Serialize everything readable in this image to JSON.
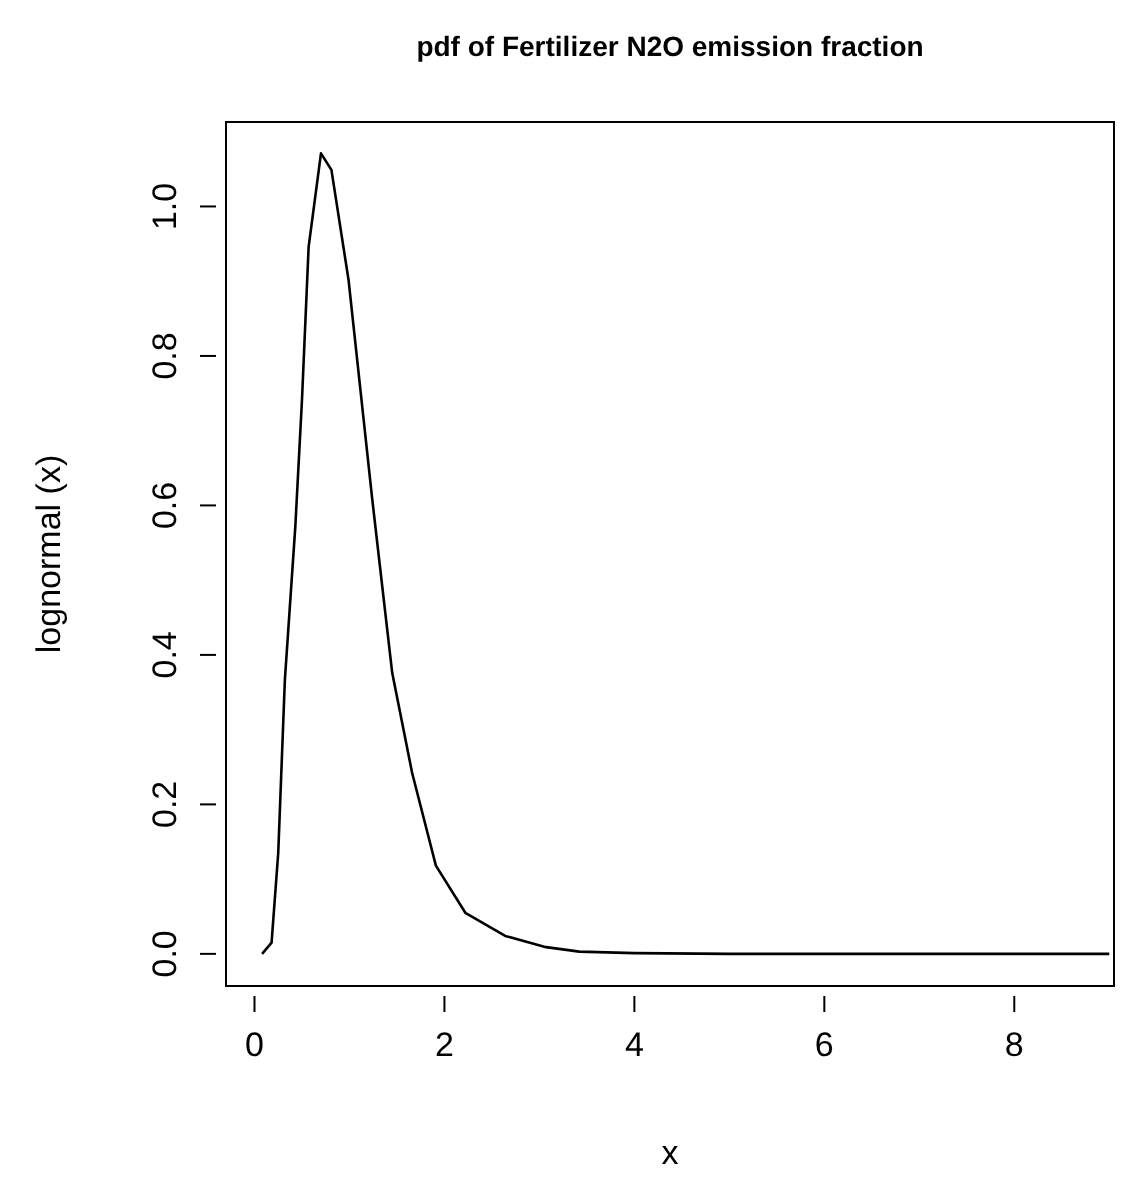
{
  "chart_data": {
    "type": "line",
    "title": "pdf of Fertilizer N2O emission fraction",
    "xlabel": "x",
    "ylabel": "lognormal (x)",
    "x": [
      0.08,
      0.18,
      0.25,
      0.32,
      0.43,
      0.5,
      0.57,
      0.7,
      0.81,
      0.99,
      1.24,
      1.45,
      1.66,
      1.91,
      2.22,
      2.64,
      3.07,
      3.42,
      4,
      5,
      6,
      7,
      8,
      9
    ],
    "series": [
      {
        "color": "#000000",
        "values": [
          0,
          0.015,
          0.135,
          0.367,
          0.572,
          0.741,
          0.946,
          1.071,
          1.049,
          0.902,
          0.608,
          0.376,
          0.242,
          0.118,
          0.055,
          0.024,
          0.009,
          0.003,
          0.001,
          0,
          0,
          0,
          0,
          0
        ]
      }
    ],
    "xlim": [
      -0.3,
      9.05
    ],
    "ylim": [
      -0.043,
      1.113
    ],
    "xticks": [
      0,
      2,
      4,
      6,
      8
    ],
    "yticks": [
      {
        "value": 0,
        "label": "0.0"
      },
      {
        "value": 0.2,
        "label": "0.2"
      },
      {
        "value": 0.4,
        "label": "0.4"
      },
      {
        "value": 0.6,
        "label": "0.6"
      },
      {
        "value": 0.8,
        "label": "0.8"
      },
      {
        "value": 1,
        "label": "1.0"
      }
    ],
    "marker": "none",
    "line_style": "solid"
  }
}
